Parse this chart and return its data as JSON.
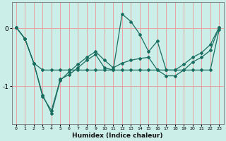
{
  "bg_color": "#cceee8",
  "grid_color": "#e8a0a0",
  "line_color": "#1a6e60",
  "xlabel": "Humidex (Indice chaleur)",
  "x_ticks": [
    0,
    1,
    2,
    3,
    4,
    5,
    6,
    7,
    8,
    9,
    10,
    11,
    12,
    13,
    14,
    15,
    16,
    17,
    18,
    19,
    20,
    21,
    22,
    23
  ],
  "y_ticks": [
    0,
    -1
  ],
  "xlim": [
    -0.5,
    23.5
  ],
  "ylim": [
    -1.65,
    0.45
  ],
  "line1_y": [
    0.02,
    -0.18,
    -0.6,
    -0.72,
    -0.72,
    -0.72,
    -0.72,
    -0.72,
    -0.72,
    -0.72,
    -0.72,
    -0.72,
    -0.72,
    -0.72,
    -0.72,
    -0.72,
    -0.72,
    -0.72,
    -0.72,
    -0.72,
    -0.72,
    -0.72,
    -0.72,
    -0.02
  ],
  "line2_y": [
    0.02,
    -0.18,
    -0.6,
    -1.18,
    -1.42,
    -0.88,
    -0.8,
    -0.68,
    -0.55,
    -0.45,
    -0.68,
    -0.72,
    0.25,
    0.12,
    -0.1,
    -0.4,
    -0.22,
    -0.72,
    -0.72,
    -0.62,
    -0.5,
    -0.42,
    -0.28,
    0.02
  ],
  "line3_y": [
    0.02,
    -0.18,
    -0.6,
    -1.15,
    -1.47,
    -0.9,
    -0.75,
    -0.62,
    -0.5,
    -0.4,
    -0.55,
    -0.68,
    -0.6,
    -0.55,
    -0.52,
    -0.5,
    -0.72,
    -0.82,
    -0.82,
    -0.72,
    -0.58,
    -0.5,
    -0.38,
    0.02
  ]
}
